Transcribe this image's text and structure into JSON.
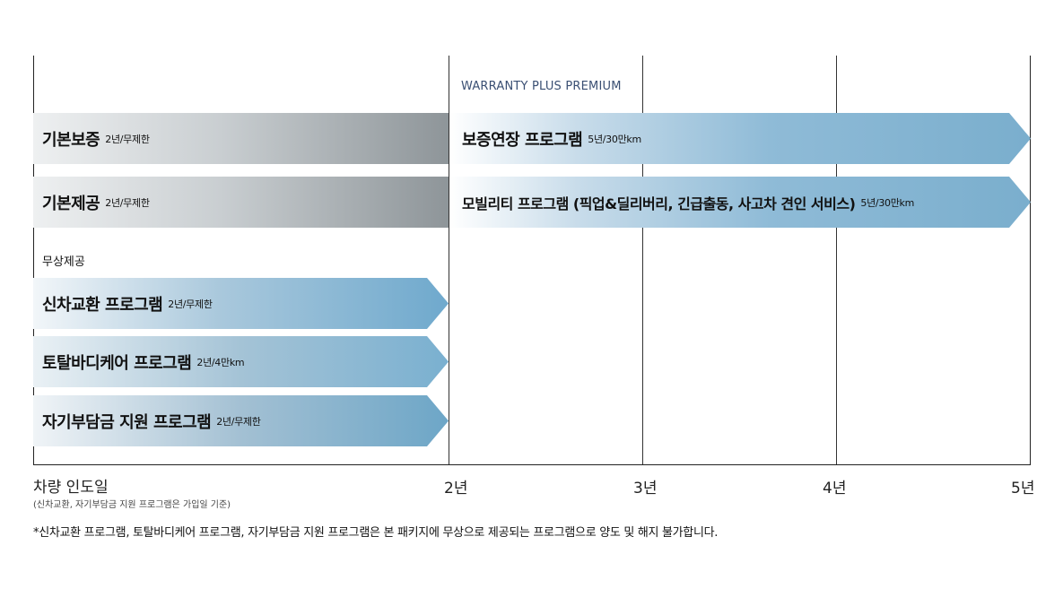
{
  "header": {
    "warranty_label": "WARRANTY PLUS PREMIUM"
  },
  "left_bars": [
    {
      "main": "기본보증",
      "sub": "2년/무제한"
    },
    {
      "main": "기본제공",
      "sub": "2년/무제한"
    }
  ],
  "free_label": "무상제공",
  "free_bars": [
    {
      "main": "신차교환 프로그램",
      "sub": "2년/무제한"
    },
    {
      "main": "토탈바디케어 프로그램",
      "sub": "2년/4만km"
    },
    {
      "main": "자기부담금 지원 프로그램",
      "sub": "2년/무제한"
    }
  ],
  "right_bars": [
    {
      "main": "보증연장 프로그램",
      "sub": "5년/30만km"
    },
    {
      "main": "모빌리티 프로그램 (픽업&딜리버리, 긴급출동, 사고차 견인 서비스)",
      "sub": "5년/30만km"
    }
  ],
  "axis": {
    "start": "차량 인도일",
    "start_note": "(신차교환, 자기부담금 지원 프로그램은 가입일 기준)",
    "ticks": [
      "2년",
      "3년",
      "4년",
      "5년"
    ]
  },
  "footnote": "*신차교환 프로그램, 토탈바디케어 프로그램, 자기부담금 지원 프로그램은 본 패키지에 무상으로 제공되는 프로그램으로 양도 및 해지 불가합니다.",
  "colors": {
    "grey_end": "#8e9599",
    "blue_end": "#6fa9cd",
    "warranty_text": "#3a4f73"
  }
}
